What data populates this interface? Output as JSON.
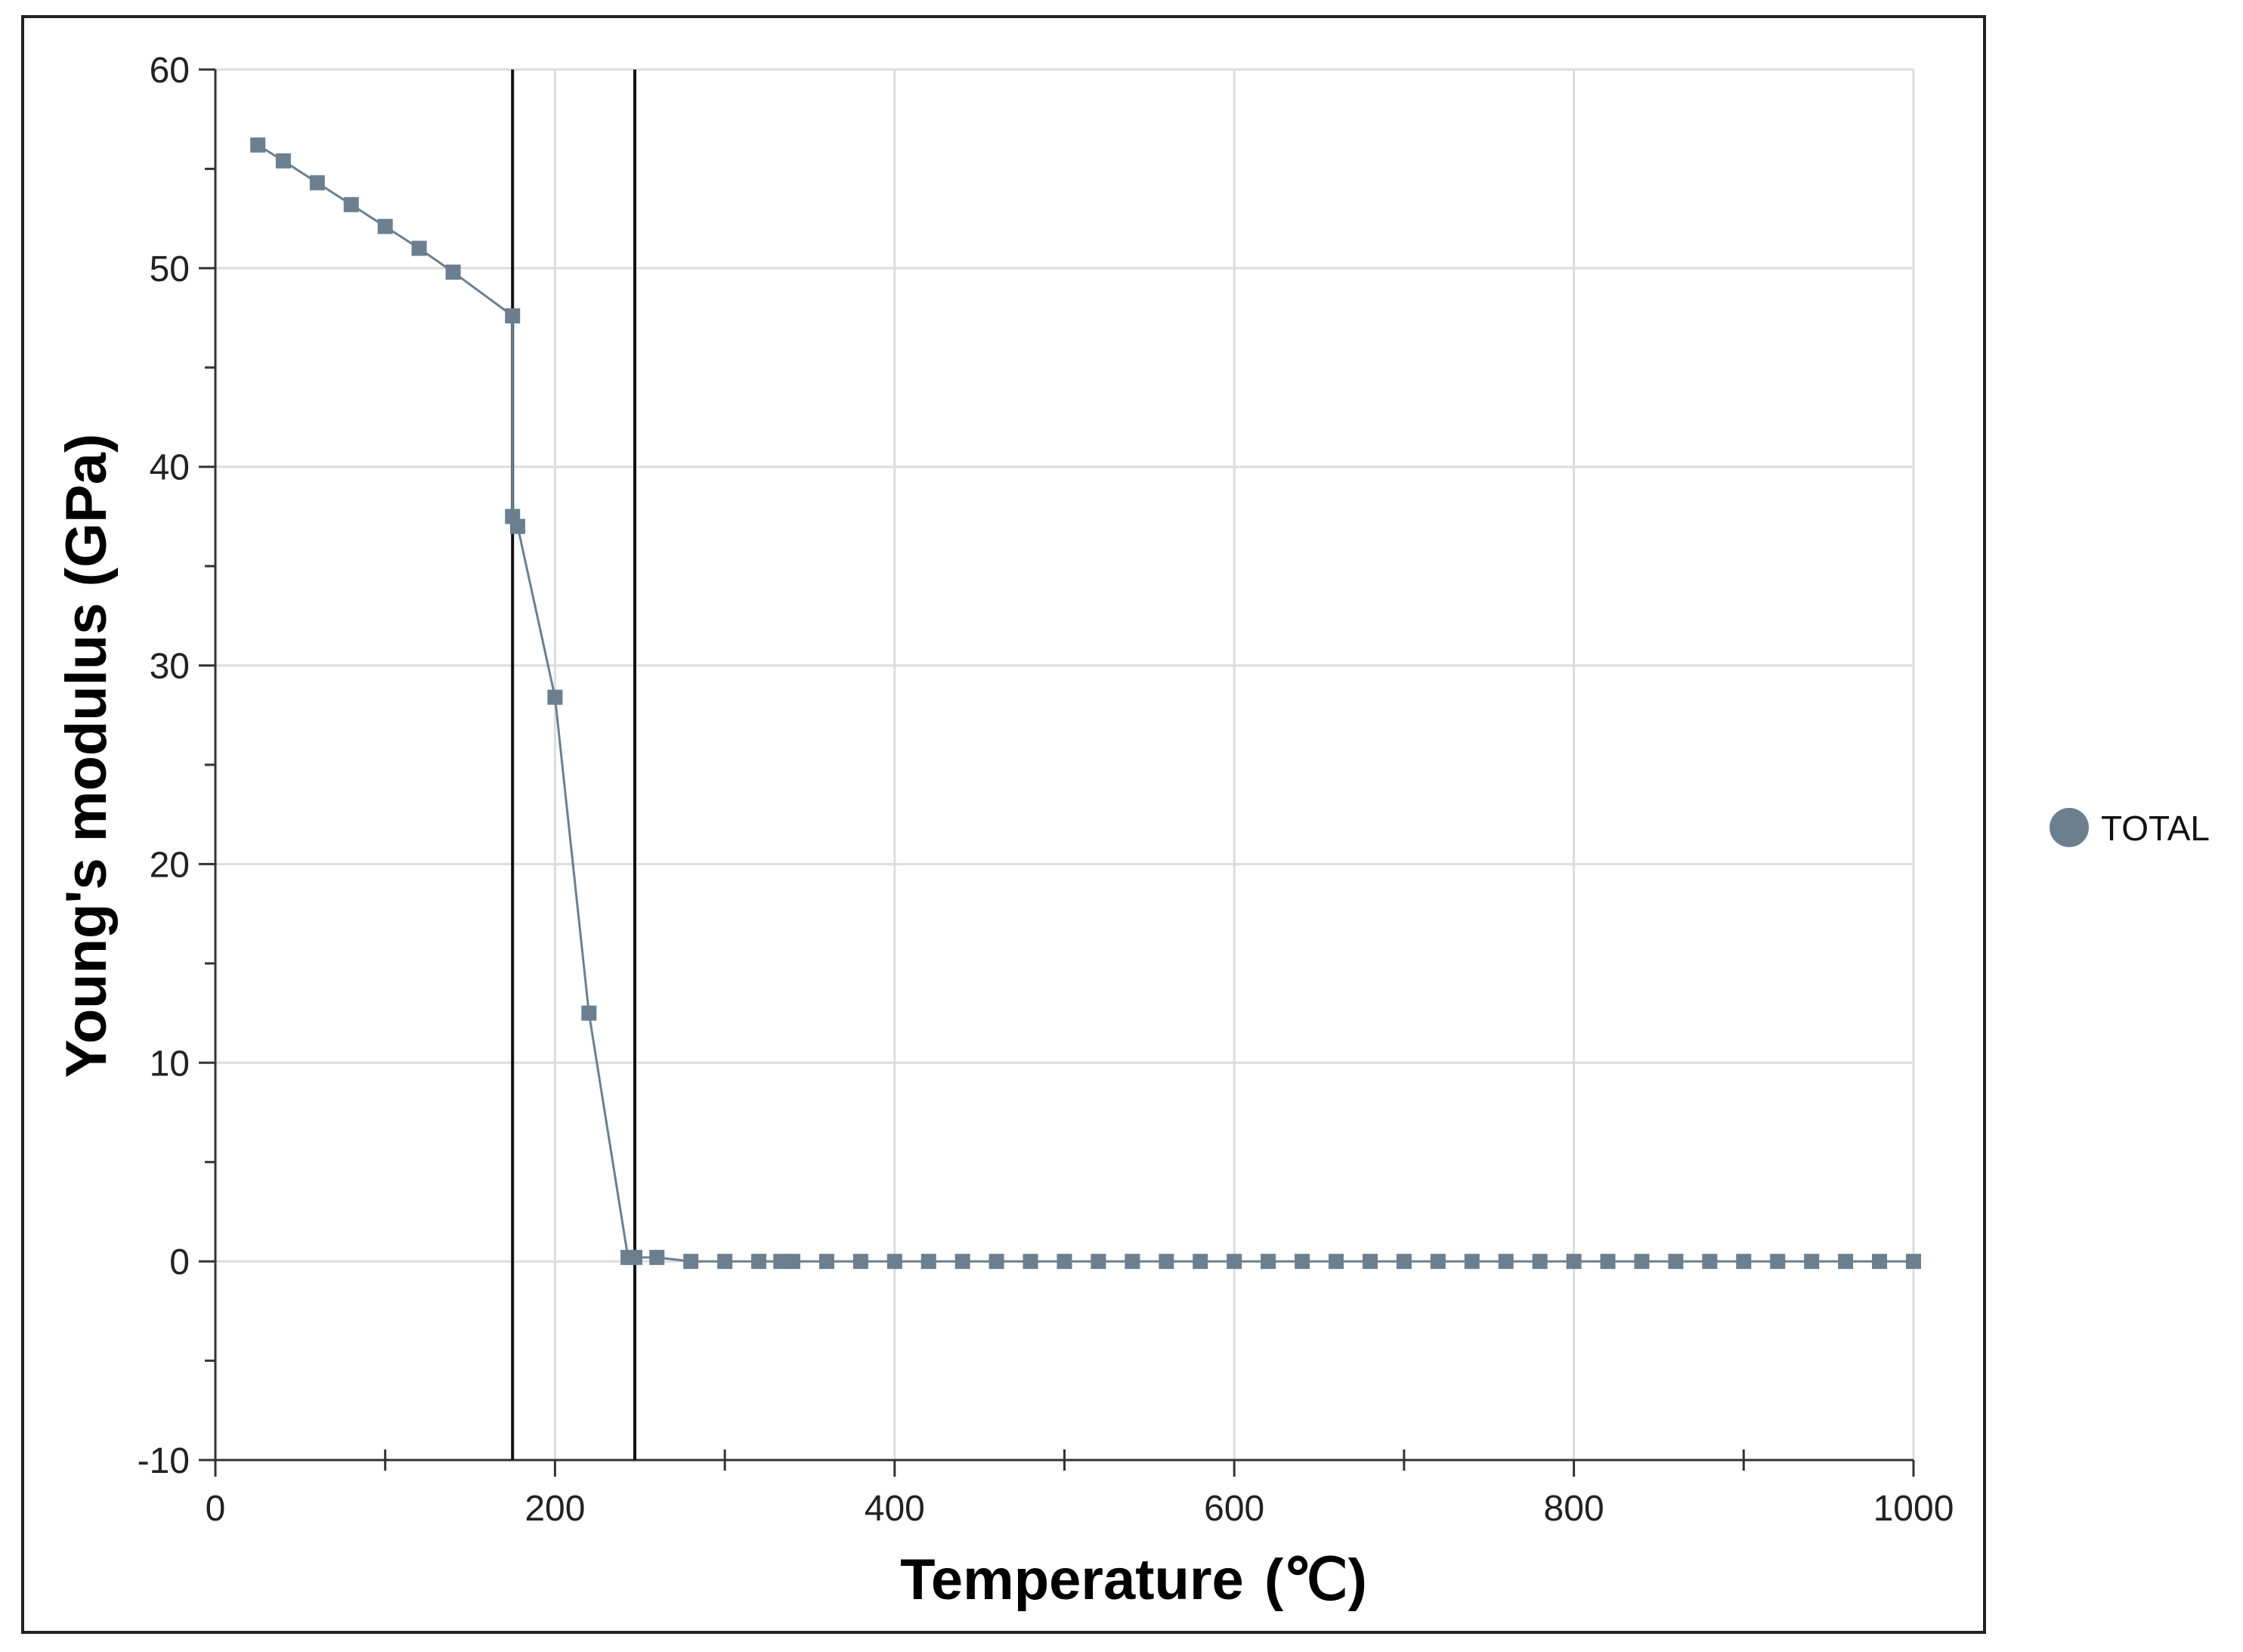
{
  "chart_data": {
    "type": "line",
    "xlabel": "Temperature",
    "xlabel_unit": "(℃)",
    "ylabel": "Young's modulus (GPa)",
    "xlim": [
      0,
      1000
    ],
    "ylim": [
      -10,
      60
    ],
    "x_ticks": [
      0,
      200,
      400,
      600,
      800,
      1000
    ],
    "y_ticks": [
      -10,
      0,
      10,
      20,
      30,
      40,
      50,
      60
    ],
    "x_tick_labels": [
      "0",
      "200",
      "400",
      "600",
      "800",
      "1000"
    ],
    "y_tick_labels": [
      "-10",
      "0",
      "10",
      "20",
      "30",
      "40",
      "50",
      "60"
    ],
    "grid": true,
    "legend_position": "right",
    "reference_lines_x": [
      175,
      247
    ],
    "series": [
      {
        "name": "TOTAL",
        "color": "#6b7f8f",
        "marker": "square",
        "points": [
          [
            25,
            56.2
          ],
          [
            40,
            55.4
          ],
          [
            60,
            54.3
          ],
          [
            80,
            53.2
          ],
          [
            100,
            52.1
          ],
          [
            120,
            51.0
          ],
          [
            140,
            49.8
          ],
          [
            175,
            47.6
          ],
          [
            175,
            37.5
          ],
          [
            178,
            37.0
          ],
          [
            200,
            28.4
          ],
          [
            220,
            12.5
          ],
          [
            243,
            0.2
          ],
          [
            247,
            0.2
          ],
          [
            260,
            0.2
          ],
          [
            280,
            0
          ],
          [
            300,
            0
          ],
          [
            320,
            0
          ],
          [
            333,
            0
          ],
          [
            340,
            0
          ],
          [
            360,
            0
          ],
          [
            380,
            0
          ],
          [
            400,
            0
          ],
          [
            420,
            0
          ],
          [
            440,
            0
          ],
          [
            460,
            0
          ],
          [
            480,
            0
          ],
          [
            500,
            0
          ],
          [
            520,
            0
          ],
          [
            540,
            0
          ],
          [
            560,
            0
          ],
          [
            580,
            0
          ],
          [
            600,
            0
          ],
          [
            620,
            0
          ],
          [
            640,
            0
          ],
          [
            660,
            0
          ],
          [
            680,
            0
          ],
          [
            700,
            0
          ],
          [
            720,
            0
          ],
          [
            740,
            0
          ],
          [
            760,
            0
          ],
          [
            780,
            0
          ],
          [
            800,
            0
          ],
          [
            820,
            0
          ],
          [
            840,
            0
          ],
          [
            860,
            0
          ],
          [
            880,
            0
          ],
          [
            900,
            0
          ],
          [
            920,
            0
          ],
          [
            940,
            0
          ],
          [
            960,
            0
          ],
          [
            980,
            0
          ],
          [
            1000,
            0
          ]
        ]
      }
    ]
  }
}
